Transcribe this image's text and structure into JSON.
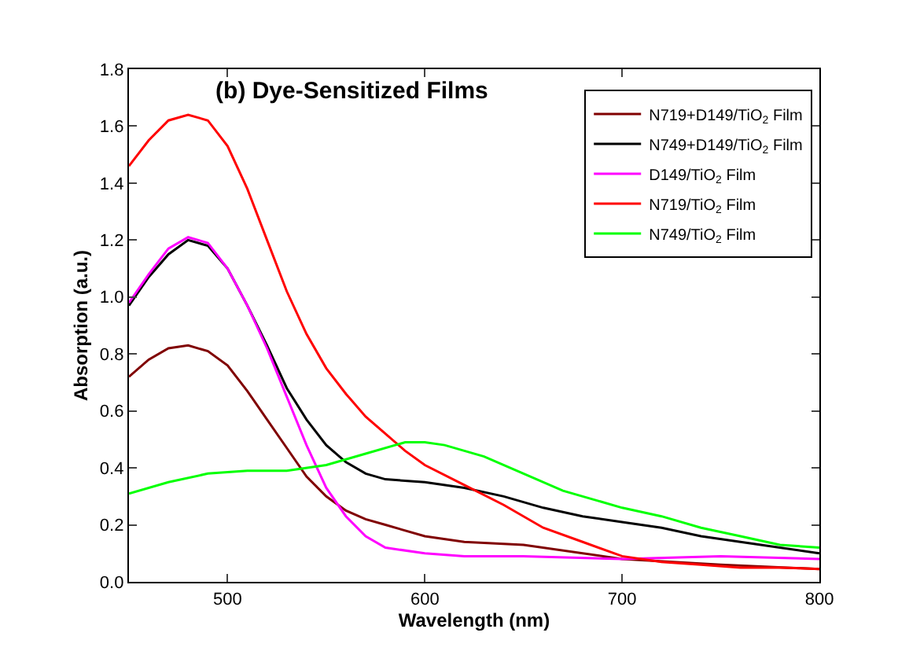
{
  "chart_data": {
    "type": "line",
    "title": "(b) Dye-Sensitized Films",
    "xlabel": "Wavelength (nm)",
    "ylabel": "Absorption (a.u.)",
    "xlim": [
      450,
      800
    ],
    "xticks": [
      500,
      600,
      700,
      800
    ],
    "ylim": [
      0,
      1.8
    ],
    "yticks": [
      {
        "value": 0,
        "label": "0.0"
      },
      0.2,
      0.4,
      0.6,
      0.8,
      {
        "value": 1,
        "label": "1.0"
      },
      1.2,
      1.4,
      1.6,
      1.8
    ],
    "legend": "top right",
    "marker": "none",
    "line_style": "solid",
    "series": [
      {
        "name": "N719+D149/TiO$_{2}$ Film",
        "color": "#800000",
        "x": [
          450,
          460,
          470,
          480,
          490,
          500,
          510,
          520,
          530,
          540,
          550,
          560,
          570,
          580,
          600,
          620,
          650,
          700,
          750,
          800
        ],
        "values": [
          0.72,
          0.78,
          0.82,
          0.83,
          0.81,
          0.76,
          0.67,
          0.57,
          0.47,
          0.37,
          0.3,
          0.25,
          0.22,
          0.2,
          0.16,
          0.14,
          0.13,
          0.08,
          0.06,
          0.045
        ]
      },
      {
        "name": "N749+D149/TiO$_{2}$ Film",
        "color": "#000000",
        "x": [
          450,
          460,
          470,
          480,
          490,
          500,
          510,
          520,
          530,
          540,
          550,
          560,
          570,
          580,
          600,
          620,
          640,
          660,
          680,
          700,
          720,
          740,
          760,
          780,
          800
        ],
        "values": [
          0.97,
          1.07,
          1.15,
          1.2,
          1.18,
          1.1,
          0.97,
          0.83,
          0.68,
          0.57,
          0.48,
          0.42,
          0.38,
          0.36,
          0.35,
          0.33,
          0.3,
          0.26,
          0.23,
          0.21,
          0.19,
          0.16,
          0.14,
          0.12,
          0.1
        ]
      },
      {
        "name": "D149/TiO$_{2}$ Film",
        "color": "#ff00ff",
        "x": [
          450,
          460,
          470,
          480,
          490,
          500,
          510,
          520,
          530,
          540,
          550,
          560,
          570,
          580,
          600,
          620,
          650,
          700,
          750,
          800
        ],
        "values": [
          0.98,
          1.08,
          1.17,
          1.21,
          1.19,
          1.1,
          0.97,
          0.82,
          0.65,
          0.48,
          0.33,
          0.23,
          0.16,
          0.12,
          0.1,
          0.09,
          0.09,
          0.08,
          0.09,
          0.08
        ]
      },
      {
        "name": "N719/TiO$_{2}$ Film",
        "color": "#ff0000",
        "x": [
          450,
          460,
          470,
          480,
          490,
          500,
          510,
          520,
          530,
          540,
          550,
          560,
          570,
          580,
          590,
          600,
          620,
          640,
          660,
          680,
          700,
          720,
          740,
          760,
          780,
          800
        ],
        "values": [
          1.46,
          1.55,
          1.62,
          1.64,
          1.62,
          1.53,
          1.38,
          1.2,
          1.02,
          0.87,
          0.75,
          0.66,
          0.58,
          0.52,
          0.46,
          0.41,
          0.34,
          0.27,
          0.19,
          0.14,
          0.09,
          0.07,
          0.06,
          0.05,
          0.05,
          0.045
        ]
      },
      {
        "name": "N749/TiO$_{2}$ Film",
        "color": "#00ff00",
        "x": [
          450,
          470,
          490,
          510,
          530,
          550,
          570,
          590,
          600,
          610,
          630,
          650,
          670,
          700,
          720,
          740,
          760,
          780,
          800
        ],
        "values": [
          0.31,
          0.35,
          0.38,
          0.39,
          0.39,
          0.41,
          0.45,
          0.49,
          0.49,
          0.48,
          0.44,
          0.38,
          0.32,
          0.26,
          0.23,
          0.19,
          0.16,
          0.13,
          0.12
        ]
      }
    ]
  }
}
